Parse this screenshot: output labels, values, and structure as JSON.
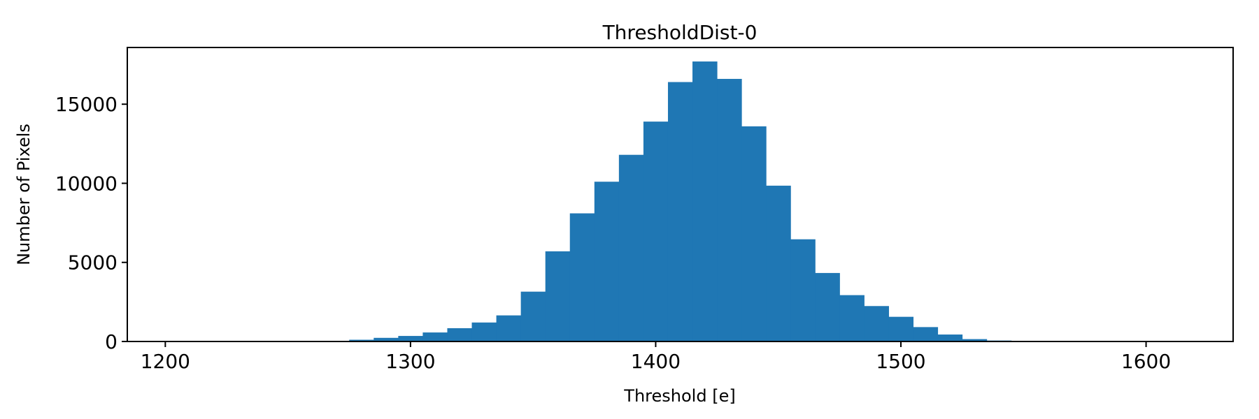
{
  "figure": {
    "background": "#ffffff"
  },
  "chart_data": {
    "type": "bar",
    "subtype": "histogram",
    "title": "ThresholdDist-0",
    "xlabel": "Threshold [e]",
    "ylabel": "Number of Pixels",
    "bar_color": "#1f77b4",
    "axis_color": "#000000",
    "grid": false,
    "legend": null,
    "xlim": [
      1184.5,
      1635.5
    ],
    "ylim": [
      0,
      18585
    ],
    "x_ticks": [
      1200,
      1300,
      1400,
      1500,
      1600
    ],
    "y_ticks": [
      0,
      5000,
      10000,
      15000
    ],
    "bin_start": 1205,
    "bin_width": 10,
    "counts": [
      10,
      15,
      15,
      20,
      25,
      30,
      40,
      110,
      230,
      350,
      570,
      840,
      1200,
      1650,
      3150,
      5700,
      8100,
      10100,
      11800,
      13900,
      16400,
      17700,
      16600,
      13600,
      9850,
      6460,
      4330,
      2930,
      2240,
      1560,
      910,
      440,
      150,
      60,
      25,
      20,
      15,
      15,
      20,
      40,
      30
    ]
  }
}
